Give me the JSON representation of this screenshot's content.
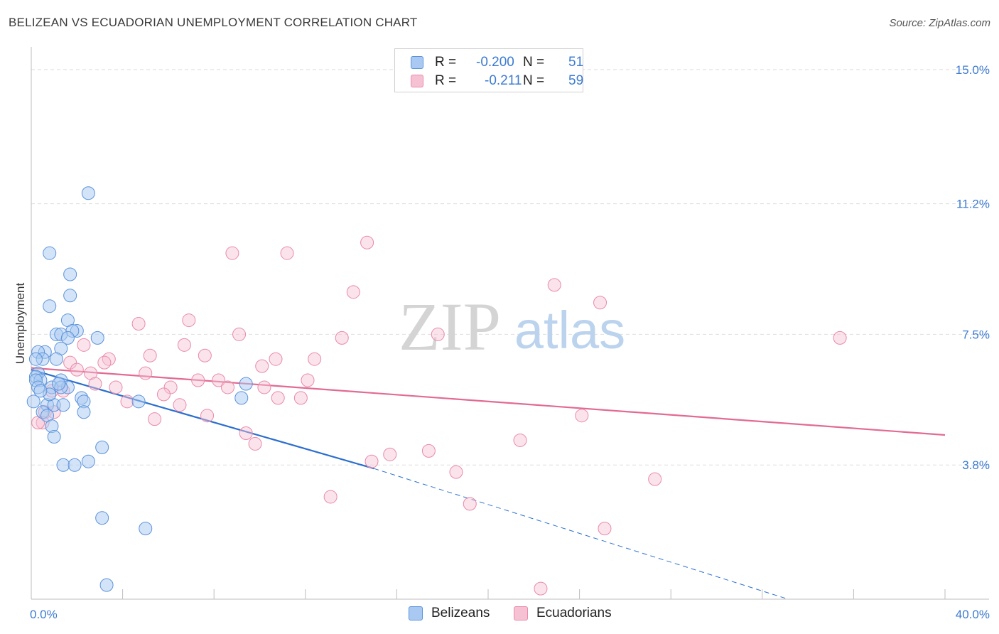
{
  "title": "BELIZEAN VS ECUADORIAN UNEMPLOYMENT CORRELATION CHART",
  "source": "Source: ZipAtlas.com",
  "watermark": {
    "zip": "ZIP",
    "atlas": "atlas"
  },
  "colors": {
    "blue_fill": "#a9c9f2",
    "blue_stroke": "#5b93db",
    "blue_line": "#2c6fcf",
    "pink_fill": "#f6c1d2",
    "pink_stroke": "#e98aa9",
    "pink_line": "#e26a93",
    "tick_text": "#3d7bd0"
  },
  "legend": {
    "rows": [
      {
        "r_label": "R =",
        "r_value": "-0.200",
        "n_label": "N =",
        "n_value": "51"
      },
      {
        "r_label": "R =",
        "r_value": "-0.211",
        "n_label": "N =",
        "n_value": "59"
      }
    ]
  },
  "bottom_legend": {
    "series1": "Belizeans",
    "series2": "Ecuadorians"
  },
  "chart_data": {
    "type": "scatter",
    "title": "BELIZEAN VS ECUADORIAN UNEMPLOYMENT CORRELATION CHART",
    "xlabel": "",
    "ylabel": "Unemployment",
    "xlim": [
      0,
      40
    ],
    "ylim": [
      0,
      15.4
    ],
    "x_tick_labels": [
      "0.0%",
      "40.0%"
    ],
    "y_ticks": [
      {
        "value": 3.8,
        "label": "3.8%"
      },
      {
        "value": 7.5,
        "label": "7.5%"
      },
      {
        "value": 11.2,
        "label": "11.2%"
      },
      {
        "value": 15.0,
        "label": "15.0%"
      }
    ],
    "series": [
      {
        "name": "Belizeans",
        "r": -0.2,
        "n": 51,
        "trend": {
          "x0": 0,
          "y0": 6.5,
          "x1": 15.0,
          "y1": 3.7,
          "dash_to_x": 40,
          "dash_to_y": -1.4
        },
        "points": [
          [
            2.5,
            11.5
          ],
          [
            0.8,
            9.8
          ],
          [
            1.7,
            9.2
          ],
          [
            1.7,
            8.6
          ],
          [
            0.8,
            8.3
          ],
          [
            1.6,
            7.9
          ],
          [
            2.0,
            7.6
          ],
          [
            1.8,
            7.6
          ],
          [
            1.1,
            7.5
          ],
          [
            1.3,
            7.5
          ],
          [
            2.9,
            7.4
          ],
          [
            1.6,
            7.4
          ],
          [
            1.3,
            7.1
          ],
          [
            0.6,
            7.0
          ],
          [
            0.3,
            7.0
          ],
          [
            0.5,
            6.8
          ],
          [
            0.2,
            6.8
          ],
          [
            1.1,
            6.8
          ],
          [
            0.3,
            6.4
          ],
          [
            0.2,
            6.3
          ],
          [
            0.4,
            6.2
          ],
          [
            0.2,
            6.2
          ],
          [
            1.3,
            6.2
          ],
          [
            1.6,
            6.0
          ],
          [
            0.9,
            6.0
          ],
          [
            1.3,
            6.0
          ],
          [
            9.4,
            6.1
          ],
          [
            2.2,
            5.7
          ],
          [
            2.3,
            5.6
          ],
          [
            4.7,
            5.6
          ],
          [
            9.2,
            5.7
          ],
          [
            0.1,
            5.6
          ],
          [
            0.7,
            5.5
          ],
          [
            1.0,
            5.5
          ],
          [
            1.4,
            5.5
          ],
          [
            2.3,
            5.3
          ],
          [
            0.5,
            5.3
          ],
          [
            0.7,
            5.2
          ],
          [
            0.9,
            4.9
          ],
          [
            1.0,
            4.6
          ],
          [
            3.1,
            4.3
          ],
          [
            2.5,
            3.9
          ],
          [
            1.4,
            3.8
          ],
          [
            1.9,
            3.8
          ],
          [
            3.1,
            2.3
          ],
          [
            5.0,
            2.0
          ],
          [
            3.3,
            0.4
          ],
          [
            0.3,
            6.0
          ],
          [
            0.8,
            5.8
          ],
          [
            1.2,
            6.1
          ],
          [
            0.4,
            5.9
          ]
        ]
      },
      {
        "name": "Ecuadorians",
        "r": -0.211,
        "n": 59,
        "trend": {
          "x0": 0,
          "y0": 6.55,
          "x1": 40,
          "y1": 4.65
        },
        "points": [
          [
            14.7,
            10.1
          ],
          [
            8.8,
            9.8
          ],
          [
            11.2,
            9.8
          ],
          [
            22.9,
            8.9
          ],
          [
            14.1,
            8.7
          ],
          [
            24.9,
            8.4
          ],
          [
            4.7,
            7.8
          ],
          [
            6.9,
            7.9
          ],
          [
            9.1,
            7.5
          ],
          [
            13.6,
            7.4
          ],
          [
            17.8,
            7.5
          ],
          [
            35.4,
            7.4
          ],
          [
            2.3,
            7.2
          ],
          [
            6.7,
            7.2
          ],
          [
            5.2,
            6.9
          ],
          [
            7.6,
            6.9
          ],
          [
            3.4,
            6.8
          ],
          [
            1.7,
            6.7
          ],
          [
            3.2,
            6.7
          ],
          [
            10.7,
            6.8
          ],
          [
            12.4,
            6.8
          ],
          [
            10.1,
            6.6
          ],
          [
            2.0,
            6.5
          ],
          [
            5.0,
            6.4
          ],
          [
            2.6,
            6.4
          ],
          [
            7.3,
            6.2
          ],
          [
            8.2,
            6.2
          ],
          [
            12.1,
            6.2
          ],
          [
            2.8,
            6.1
          ],
          [
            3.7,
            6.0
          ],
          [
            6.1,
            6.0
          ],
          [
            8.6,
            6.0
          ],
          [
            10.2,
            6.0
          ],
          [
            0.9,
            5.9
          ],
          [
            1.4,
            5.9
          ],
          [
            5.8,
            5.8
          ],
          [
            10.8,
            5.7
          ],
          [
            11.8,
            5.7
          ],
          [
            4.2,
            5.6
          ],
          [
            6.5,
            5.5
          ],
          [
            0.6,
            5.3
          ],
          [
            1.0,
            5.3
          ],
          [
            7.7,
            5.2
          ],
          [
            24.1,
            5.2
          ],
          [
            5.4,
            5.1
          ],
          [
            0.5,
            5.0
          ],
          [
            0.3,
            5.0
          ],
          [
            9.4,
            4.7
          ],
          [
            21.4,
            4.5
          ],
          [
            9.8,
            4.4
          ],
          [
            17.4,
            4.2
          ],
          [
            15.7,
            4.1
          ],
          [
            14.9,
            3.9
          ],
          [
            18.6,
            3.6
          ],
          [
            27.3,
            3.4
          ],
          [
            13.1,
            2.9
          ],
          [
            19.2,
            2.7
          ],
          [
            25.1,
            2.0
          ],
          [
            22.3,
            0.3
          ]
        ]
      }
    ]
  }
}
